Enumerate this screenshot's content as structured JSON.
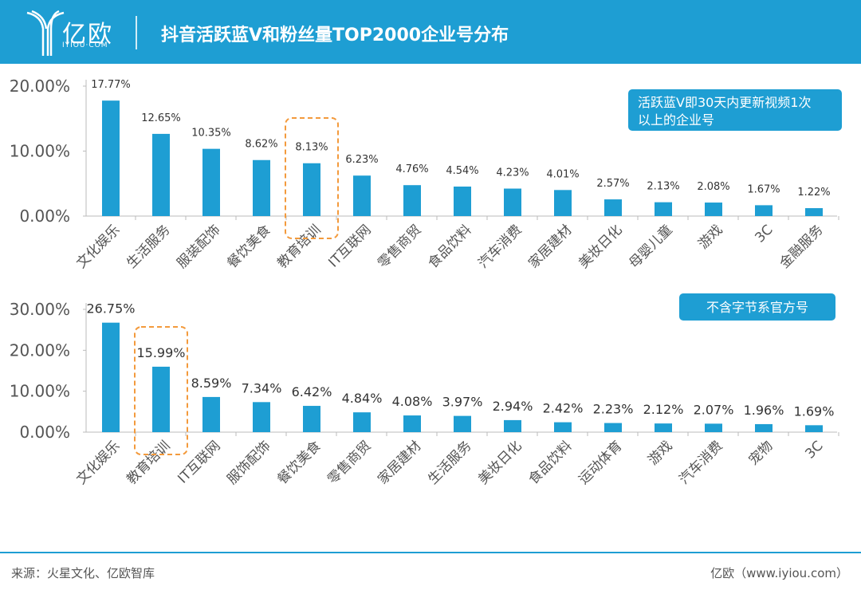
{
  "header": {
    "logo": "亿欧",
    "logo_sub": "IYIOU·COM",
    "title": "抖音活跃蓝V和粉丝量TOP2000企业号分布"
  },
  "footer": {
    "source": "来源：火星文化、亿欧智库",
    "credit": "亿欧（www.iyiou.com）"
  },
  "colors": {
    "bar": "#1e9ed3",
    "highlight": "#f39a3c",
    "note_bg": "#1e9ed3"
  },
  "chart_data": [
    {
      "type": "bar",
      "ylim": [
        0,
        20
      ],
      "yticks": [
        "0.00%",
        "10.00%",
        "20.00%"
      ],
      "ytick_values": [
        0,
        10,
        20
      ],
      "note": [
        "活跃蓝V即30天内更新视频1次",
        "以上的企业号"
      ],
      "highlight": "教育培训",
      "categories": [
        "文化娱乐",
        "生活服务",
        "服装配饰",
        "餐饮美食",
        "教育培训",
        "IT互联网",
        "零售商贸",
        "食品饮料",
        "汽车消费",
        "家居建材",
        "美妆日化",
        "母婴儿童",
        "游戏",
        "3C",
        "金融服务"
      ],
      "values": [
        17.77,
        12.65,
        10.35,
        8.62,
        8.13,
        6.23,
        4.76,
        4.54,
        4.23,
        4.01,
        2.57,
        2.13,
        2.08,
        1.67,
        1.22
      ],
      "labels": [
        "17.77%",
        "12.65%",
        "10.35%",
        "8.62%",
        "8.13%",
        "6.23%",
        "4.76%",
        "4.54%",
        "4.23%",
        "4.01%",
        "2.57%",
        "2.13%",
        "2.08%",
        "1.67%",
        "1.22%"
      ]
    },
    {
      "type": "bar",
      "ylim": [
        0,
        30
      ],
      "yticks": [
        "0.00%",
        "10.00%",
        "20.00%",
        "30.00%"
      ],
      "ytick_values": [
        0,
        10,
        20,
        30
      ],
      "note": [
        "不含字节系官方号"
      ],
      "highlight": "教育培训",
      "categories": [
        "文化娱乐",
        "教育培训",
        "IT互联网",
        "服饰配饰",
        "餐饮美食",
        "零售商贸",
        "家居建材",
        "生活服务",
        "美妆日化",
        "食品饮料",
        "运动体育",
        "游戏",
        "汽车消费",
        "宠物",
        "3C"
      ],
      "values": [
        26.75,
        15.99,
        8.59,
        7.34,
        6.42,
        4.84,
        4.08,
        3.97,
        2.94,
        2.42,
        2.23,
        2.12,
        2.07,
        1.96,
        1.69
      ],
      "labels": [
        "26.75%",
        "15.99%",
        "8.59%",
        "7.34%",
        "6.42%",
        "4.84%",
        "4.08%",
        "3.97%",
        "2.94%",
        "2.42%",
        "2.23%",
        "2.12%",
        "2.07%",
        "1.96%",
        "1.69%"
      ]
    }
  ]
}
